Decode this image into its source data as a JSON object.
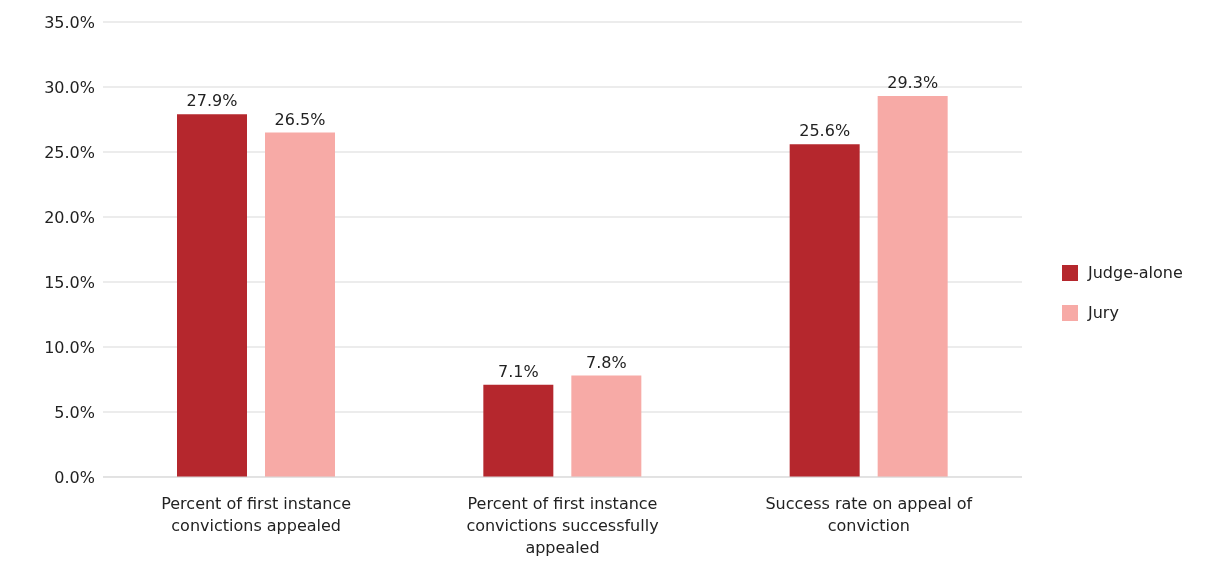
{
  "chart_data": {
    "type": "bar",
    "categories": [
      "Percent of first instance convictions appealed",
      "Percent of first instance convictions successfully appealed",
      "Success rate on appeal of conviction"
    ],
    "series": [
      {
        "name": "Judge-alone",
        "color": "#b5272d",
        "values": [
          27.9,
          7.1,
          25.6
        ],
        "value_labels": [
          "27.9%",
          "7.1%",
          "25.6%"
        ]
      },
      {
        "name": "Jury",
        "color": "#f7aaa6",
        "values": [
          26.5,
          7.8,
          29.3
        ],
        "value_labels": [
          "26.5%",
          "7.8%",
          "29.3%"
        ]
      }
    ],
    "ylim": [
      0,
      35
    ],
    "yticks": [
      {
        "value": 0,
        "label": "0.0%"
      },
      {
        "value": 5,
        "label": "5.0%"
      },
      {
        "value": 10,
        "label": "10.0%"
      },
      {
        "value": 15,
        "label": "15.0%"
      },
      {
        "value": 20,
        "label": "20.0%"
      },
      {
        "value": 25,
        "label": "25.0%"
      },
      {
        "value": 30,
        "label": "30.0%"
      },
      {
        "value": 35,
        "label": "35.0%"
      }
    ],
    "grid": "y",
    "legend": "right"
  }
}
